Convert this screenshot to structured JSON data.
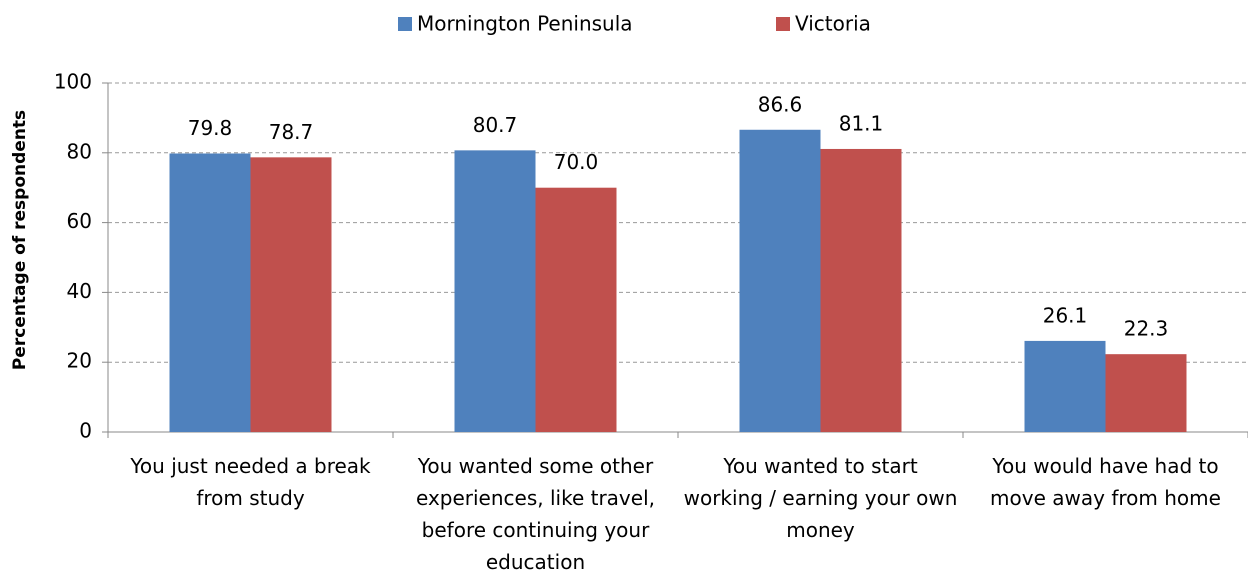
{
  "chart_data": {
    "type": "bar",
    "y_axis_label": "Percentage of respondents",
    "categories": [
      "You just needed a break from study",
      "You wanted some other experiences, like travel, before continuing your education",
      "You wanted to start working / earning your own money",
      "You would have had to move away from home"
    ],
    "series": [
      {
        "name": "Mornington Peninsula",
        "color": "#4f81bd",
        "values": [
          79.8,
          80.7,
          86.6,
          26.1
        ],
        "value_labels": [
          "79.8",
          "80.7",
          "86.6",
          "26.1"
        ]
      },
      {
        "name": "Victoria",
        "color": "#c0504d",
        "values": [
          78.7,
          70,
          81.1,
          22.3
        ],
        "value_labels": [
          "78.7",
          "70.0",
          "81.1",
          "22.3"
        ]
      }
    ],
    "ylim": [
      0,
      100
    ],
    "yticks": [
      0,
      20,
      40,
      60,
      80,
      100
    ],
    "grid": true,
    "legend": "top"
  }
}
